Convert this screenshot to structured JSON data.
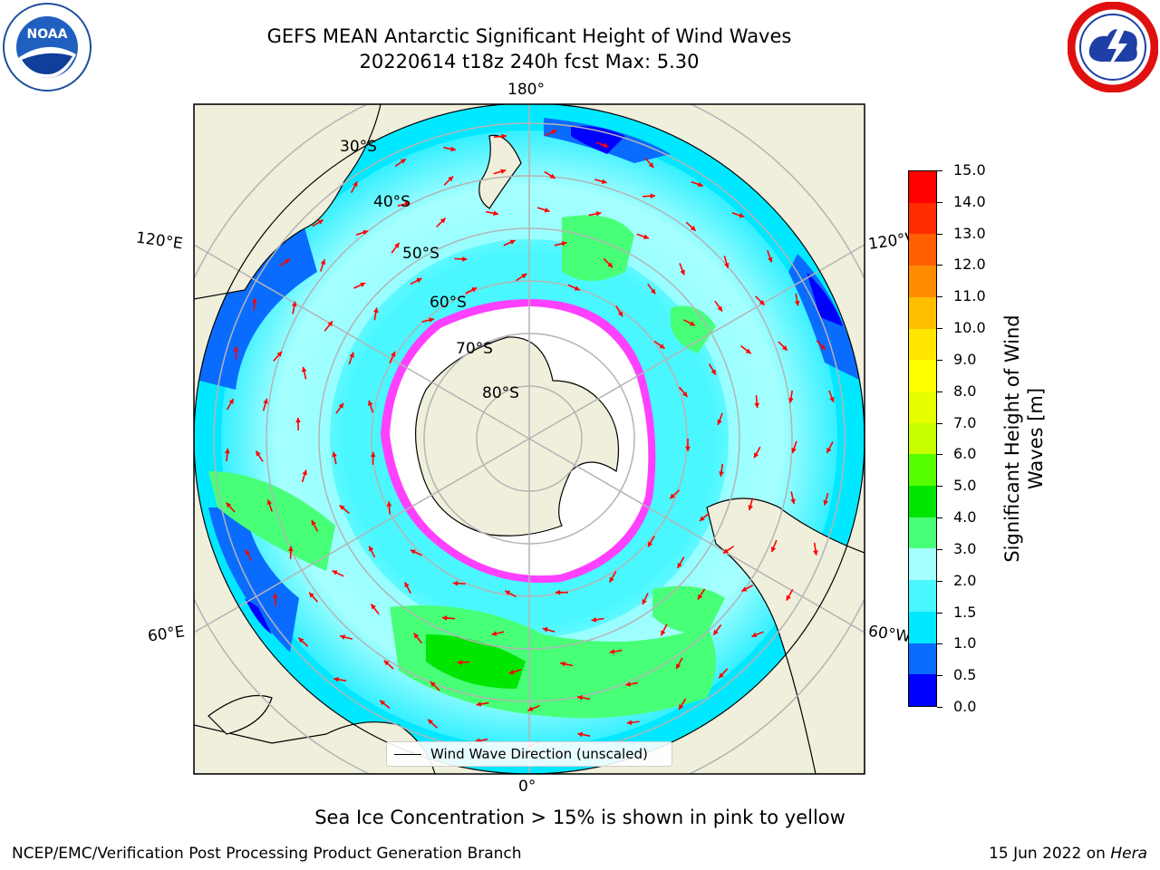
{
  "header": {
    "title_line1": "GEFS MEAN Antarctic Significant Height of Wind Waves",
    "title_line2": "20220614 t18z 240h fcst   Max: 5.30"
  },
  "logos": {
    "left": "noaa-logo",
    "right": "nws-logo",
    "left_text": "NOAA"
  },
  "map": {
    "longitude_labels": {
      "top": "180°",
      "bottom": "0°",
      "upper_left": "120°E",
      "upper_right": "120°W",
      "lower_left": "60°E",
      "lower_right": "60°W"
    },
    "latitude_labels": [
      "30°S",
      "40°S",
      "50°S",
      "60°S",
      "70°S",
      "80°S"
    ],
    "legend_label": "Wind Wave Direction (unscaled)",
    "arrow_color": "#ff0000",
    "land_color": "#efefdc",
    "ice_color": "#ffffff"
  },
  "colorbar": {
    "label": "Significant Height of Wind Waves [m]",
    "ticks": [
      "0.0",
      "0.5",
      "1.0",
      "1.5",
      "2.0",
      "3.0",
      "4.0",
      "5.0",
      "6.0",
      "7.0",
      "8.0",
      "9.0",
      "10.0",
      "11.0",
      "12.0",
      "13.0",
      "14.0",
      "15.0"
    ],
    "colors": [
      "#0000ff",
      "#0a6cff",
      "#00e8ff",
      "#4af7ff",
      "#a6ffff",
      "#48ff78",
      "#00e600",
      "#55ff00",
      "#c8ff00",
      "#e6ff00",
      "#ffff00",
      "#ffe600",
      "#ffbe00",
      "#ff8c00",
      "#ff5f00",
      "#ff2d00",
      "#ff0000"
    ]
  },
  "footer": {
    "note": "Sea Ice Concentration > 15% is shown in pink to yellow",
    "credit_left": "NCEP/EMC/Verification Post Processing Product Generation Branch",
    "credit_right_date": "15 Jun 2022 on ",
    "credit_right_host": "Hera"
  }
}
